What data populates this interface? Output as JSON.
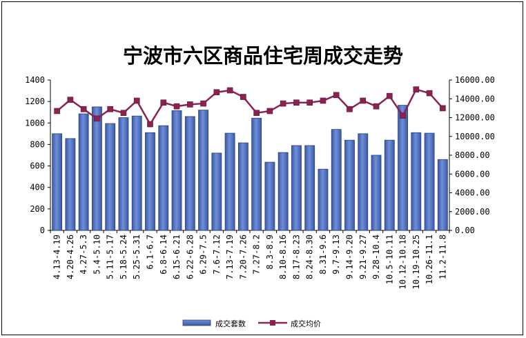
{
  "chart_data": {
    "type": "bar+line",
    "title": "宁波市六区商品住宅周成交走势",
    "categories": [
      "4.13-4.19",
      "4.20-4.26",
      "4.27-5.3",
      "5.4-5.10",
      "5.11-5.17",
      "5.18-5.24",
      "5.25-5.31",
      "6.1-6.7",
      "6.8-6.14",
      "6.15-6.21",
      "6.22-6.28",
      "6.29-7.5",
      "7.6-7.12",
      "7.13-7.19",
      "7.20-7.26",
      "7.27-8.2",
      "8.3-8.9",
      "8.10-8.16",
      "8.17-8.23",
      "8.24-8.30",
      "8.31-9.6",
      "9.7-9.13",
      "9.14-9.20",
      "9.21-9.27",
      "9.28-10.4",
      "10.5-10.11",
      "10.12-10.18",
      "10.19-10.25",
      "10.26-11.1",
      "11.2-11.8"
    ],
    "series": [
      {
        "name": "成交套数",
        "type": "bar",
        "axis": "left",
        "color": "#4f73c4",
        "values": [
          900,
          855,
          1085,
          1150,
          995,
          1050,
          1065,
          910,
          975,
          1115,
          1060,
          1120,
          720,
          905,
          815,
          1045,
          635,
          725,
          790,
          790,
          570,
          940,
          840,
          900,
          700,
          840,
          1165,
          910,
          905,
          660
        ]
      },
      {
        "name": "成交均价",
        "type": "line",
        "axis": "right",
        "color": "#8b2252",
        "values": [
          12700,
          13900,
          12900,
          11900,
          12900,
          12500,
          13800,
          11300,
          13600,
          13200,
          13400,
          13500,
          14700,
          14900,
          14200,
          12500,
          12700,
          13500,
          13600,
          13600,
          13800,
          14400,
          12900,
          13800,
          13200,
          14300,
          12200,
          15000,
          14600,
          13000
        ]
      }
    ],
    "left_axis": {
      "min": 0,
      "max": 1400,
      "step": 200,
      "tick_labels": [
        "0",
        "200",
        "400",
        "600",
        "800",
        "1000",
        "1200",
        "1400"
      ]
    },
    "right_axis": {
      "min": 0,
      "max": 16000,
      "step": 2000,
      "tick_labels": [
        "0.00",
        "2000.00",
        "4000.00",
        "6000.00",
        "8000.00",
        "10000.00",
        "12000.00",
        "14000.00",
        "16000.00"
      ]
    },
    "grid": false,
    "legend_position": "bottom"
  }
}
